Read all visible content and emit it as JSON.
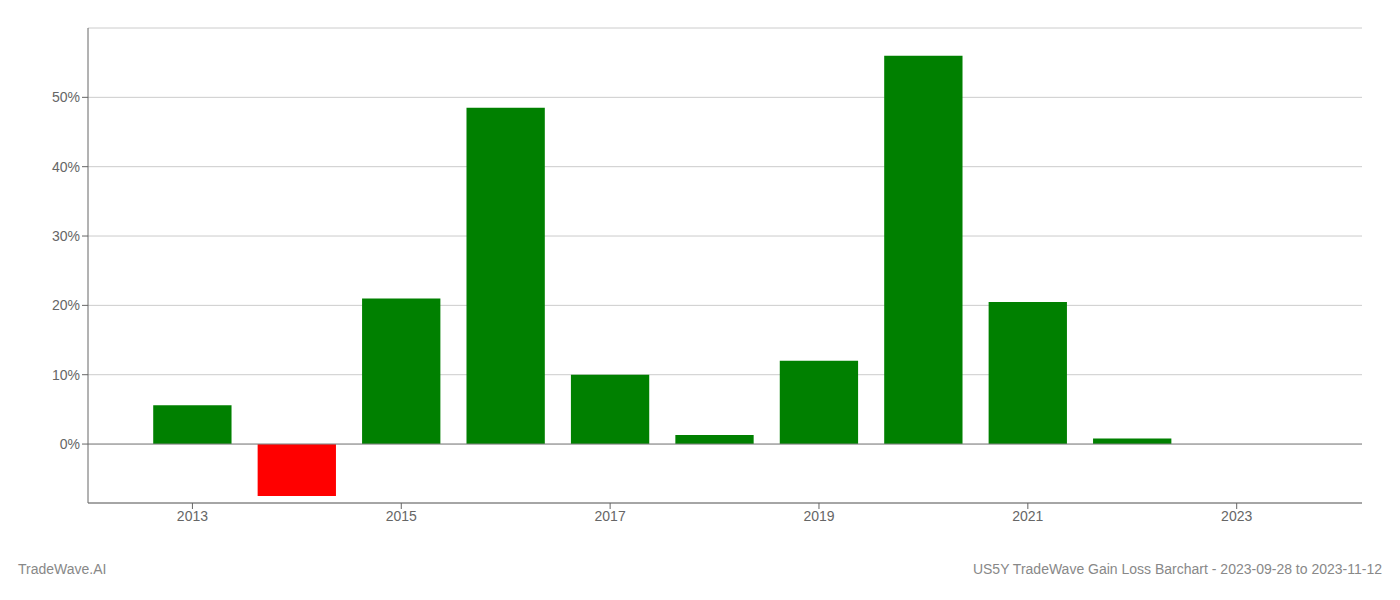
{
  "chart_data": {
    "type": "bar",
    "title": "US5Y TradeWave Gain Loss Barchart - 2023-09-28 to 2023-11-12",
    "annotations": [
      "TradeWave.AI"
    ],
    "x": [
      2013,
      2014,
      2015,
      2016,
      2017,
      2018,
      2019,
      2020,
      2021,
      2022,
      2023
    ],
    "values": [
      0.056,
      -0.075,
      0.21,
      0.485,
      0.1,
      0.013,
      0.12,
      0.56,
      0.205,
      0.008,
      0.0
    ],
    "colors": [
      "#008000",
      "#ff0000",
      "#008000",
      "#008000",
      "#008000",
      "#008000",
      "#008000",
      "#008000",
      "#008000",
      "#008000",
      "#008000"
    ],
    "xlim": [
      2012.0,
      2024.2
    ],
    "xticks": [
      2013,
      2015,
      2017,
      2019,
      2021,
      2023
    ],
    "ylim": [
      -0.085,
      0.6
    ],
    "yticks": [
      {
        "value": 0.0,
        "label": "0%"
      },
      {
        "value": 0.1,
        "label": "10%"
      },
      {
        "value": 0.2,
        "label": "20%"
      },
      {
        "value": 0.3,
        "label": "30%"
      },
      {
        "value": 0.4,
        "label": "40%"
      },
      {
        "value": 0.5,
        "label": "50%"
      }
    ],
    "grid": true
  }
}
